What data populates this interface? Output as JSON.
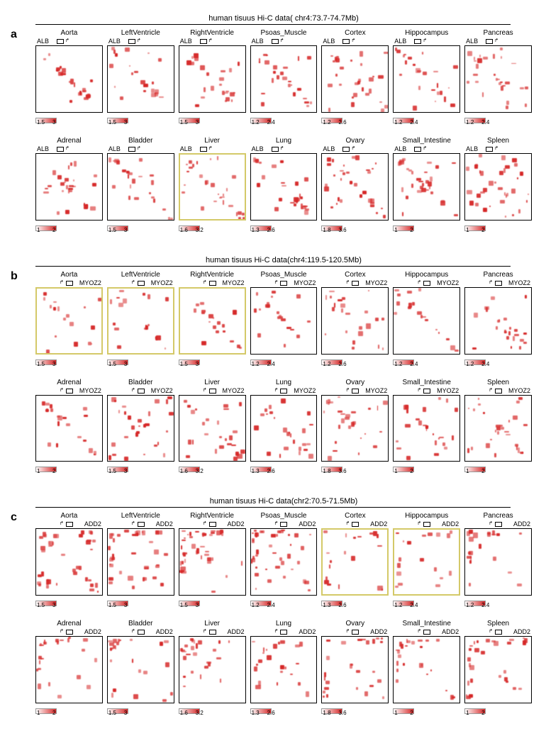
{
  "panels": [
    {
      "id": "a",
      "title": "human tisuus Hi-C data( chr4:73.7-74.7Mb)",
      "gene": "ALB",
      "gene_pos": "left",
      "rows": [
        [
          {
            "t": "Aorta",
            "s": [
              1.5,
              3
            ],
            "hl": false,
            "seed": 1
          },
          {
            "t": "LeftVentricle",
            "s": [
              1.5,
              3
            ],
            "hl": false,
            "seed": 2
          },
          {
            "t": "RightVentricle",
            "s": [
              1.5,
              3
            ],
            "hl": false,
            "seed": 3
          },
          {
            "t": "Psoas_Muscle",
            "s": [
              1.2,
              2.4
            ],
            "hl": false,
            "seed": 4
          },
          {
            "t": "Cortex",
            "s": [
              1.2,
              2.6
            ],
            "hl": false,
            "seed": 5
          },
          {
            "t": "Hippocampus",
            "s": [
              1.2,
              2.4
            ],
            "hl": false,
            "seed": 6
          },
          {
            "t": "Pancreas",
            "s": [
              1.2,
              2.4
            ],
            "hl": false,
            "seed": 7
          }
        ],
        [
          {
            "t": "Adrenal",
            "s": [
              1,
              2
            ],
            "hl": false,
            "seed": 8
          },
          {
            "t": "Bladder",
            "s": [
              1.5,
              3
            ],
            "hl": false,
            "seed": 9
          },
          {
            "t": "Liver",
            "s": [
              1.6,
              3.2
            ],
            "hl": true,
            "seed": 10
          },
          {
            "t": "Lung",
            "s": [
              1.3,
              2.6
            ],
            "hl": false,
            "seed": 11
          },
          {
            "t": "Ovary",
            "s": [
              1.8,
              3.6
            ],
            "hl": false,
            "seed": 12
          },
          {
            "t": "Small_Intestine",
            "s": [
              1,
              2
            ],
            "hl": false,
            "seed": 13
          },
          {
            "t": "Spleen",
            "s": [
              1,
              2
            ],
            "hl": false,
            "seed": 14
          }
        ]
      ]
    },
    {
      "id": "b",
      "title": "human tisuus Hi-C data(chr4:119.5-120.5Mb)",
      "gene": "MYOZ2",
      "gene_pos": "right",
      "rows": [
        [
          {
            "t": "Aorta",
            "s": [
              1.5,
              3
            ],
            "hl": true,
            "seed": 21
          },
          {
            "t": "LeftVentricle",
            "s": [
              1.5,
              3
            ],
            "hl": true,
            "seed": 22
          },
          {
            "t": "RightVentricle",
            "s": [
              1.5,
              3
            ],
            "hl": true,
            "seed": 23
          },
          {
            "t": "Psoas_Muscle",
            "s": [
              1.2,
              2.4
            ],
            "hl": false,
            "seed": 24
          },
          {
            "t": "Cortex",
            "s": [
              1.2,
              2.6
            ],
            "hl": false,
            "seed": 25
          },
          {
            "t": "Hippocampus",
            "s": [
              1.2,
              2.4
            ],
            "hl": false,
            "seed": 26
          },
          {
            "t": "Pancreas",
            "s": [
              1.2,
              2.4
            ],
            "hl": false,
            "seed": 27
          }
        ],
        [
          {
            "t": "Adrenal",
            "s": [
              1,
              2
            ],
            "hl": false,
            "seed": 28
          },
          {
            "t": "Bladder",
            "s": [
              1.5,
              3
            ],
            "hl": false,
            "seed": 29
          },
          {
            "t": "Liver",
            "s": [
              1.6,
              3.2
            ],
            "hl": false,
            "seed": 30
          },
          {
            "t": "Lung",
            "s": [
              1.3,
              2.6
            ],
            "hl": false,
            "seed": 31
          },
          {
            "t": "Ovary",
            "s": [
              1.8,
              3.6
            ],
            "hl": false,
            "seed": 32
          },
          {
            "t": "Small_Intestine",
            "s": [
              1,
              2
            ],
            "hl": false,
            "seed": 33
          },
          {
            "t": "Spleen",
            "s": [
              1,
              2
            ],
            "hl": false,
            "seed": 34
          }
        ]
      ]
    },
    {
      "id": "c",
      "title": "human tisuus Hi-C data(chr2:70.5-71.5Mb)",
      "gene": "ADD2",
      "gene_pos": "right",
      "rows": [
        [
          {
            "t": "Aorta",
            "s": [
              1.5,
              3
            ],
            "hl": false,
            "seed": 41
          },
          {
            "t": "LeftVentricle",
            "s": [
              1.5,
              3
            ],
            "hl": false,
            "seed": 42
          },
          {
            "t": "RightVentricle",
            "s": [
              1.5,
              3
            ],
            "hl": false,
            "seed": 43
          },
          {
            "t": "Psoas_Muscle",
            "s": [
              1.2,
              2.4
            ],
            "hl": false,
            "seed": 44
          },
          {
            "t": "Cortex",
            "s": [
              1.3,
              2.6
            ],
            "hl": true,
            "seed": 45
          },
          {
            "t": "Hippocampus",
            "s": [
              1.2,
              2.4
            ],
            "hl": true,
            "seed": 46
          },
          {
            "t": "Pancreas",
            "s": [
              1.2,
              2.4
            ],
            "hl": false,
            "seed": 47
          }
        ],
        [
          {
            "t": "Adrenal",
            "s": [
              1,
              2
            ],
            "hl": false,
            "seed": 48
          },
          {
            "t": "Bladder",
            "s": [
              1.5,
              3
            ],
            "hl": false,
            "seed": 49
          },
          {
            "t": "Liver",
            "s": [
              1.6,
              3.2
            ],
            "hl": false,
            "seed": 50
          },
          {
            "t": "Lung",
            "s": [
              1.3,
              2.6
            ],
            "hl": false,
            "seed": 51
          },
          {
            "t": "Ovary",
            "s": [
              1.8,
              3.6
            ],
            "hl": false,
            "seed": 52
          },
          {
            "t": "Small_Intestine",
            "s": [
              1,
              2
            ],
            "hl": false,
            "seed": 53
          },
          {
            "t": "Spleen",
            "s": [
              1,
              2
            ],
            "hl": false,
            "seed": 54
          }
        ]
      ]
    }
  ],
  "style": {
    "heatmap_color": "#d62828",
    "highlight_border": "#d4c968",
    "border_color": "#000000",
    "bg": "#ffffff",
    "tissue_fontsize": 10,
    "gene_fontsize": 9,
    "scale_fontsize": 8,
    "title_fontsize": 11,
    "panel_label_fontsize": 16
  }
}
